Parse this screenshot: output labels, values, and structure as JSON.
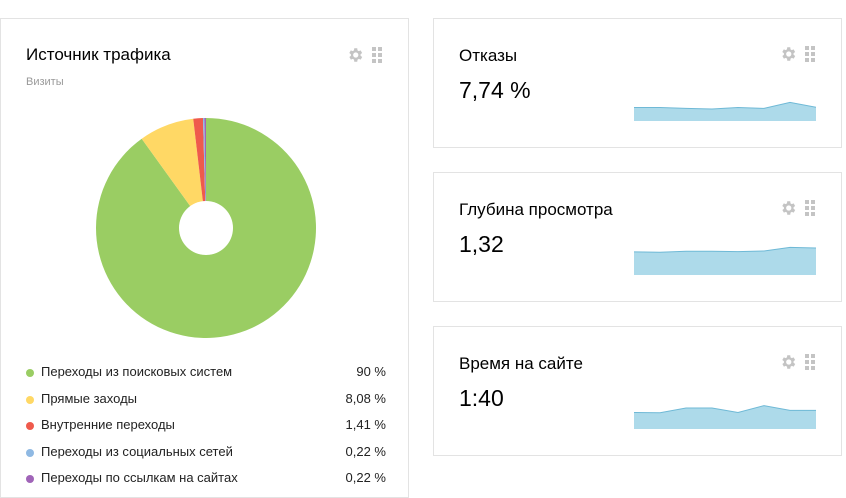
{
  "traffic": {
    "title": "Источник трафика",
    "subtitle": "Визиты",
    "items": [
      {
        "label": "Переходы из поисковых систем",
        "value": "90 %",
        "share": 90,
        "color": "#9ACD63"
      },
      {
        "label": "Прямые заходы",
        "value": "8,08 %",
        "share": 8.08,
        "color": "#FFD865"
      },
      {
        "label": "Внутренние переходы",
        "value": "1,41 %",
        "share": 1.41,
        "color": "#EF5A4C"
      },
      {
        "label": "Переходы из социальных сетей",
        "value": "0,22 %",
        "share": 0.22,
        "color": "#8FB9E3"
      },
      {
        "label": "Переходы по ссылкам на сайтах",
        "value": "0,22 %",
        "share": 0.22,
        "color": "#A064B8"
      }
    ]
  },
  "metrics": [
    {
      "title": "Отказы",
      "value": "7,74 %",
      "trend": [
        0.45,
        0.45,
        0.42,
        0.4,
        0.45,
        0.42,
        0.62,
        0.46
      ]
    },
    {
      "title": "Глубина просмотра",
      "value": "1,32",
      "trend": [
        0.77,
        0.76,
        0.79,
        0.79,
        0.78,
        0.8,
        0.92,
        0.9
      ]
    },
    {
      "title": "Время на сайте",
      "value": "1:40",
      "trend": [
        0.55,
        0.54,
        0.7,
        0.7,
        0.55,
        0.78,
        0.62,
        0.62
      ]
    }
  ],
  "colors": {
    "spark_fill": "#ADDAEA",
    "spark_line": "#6FB9D6",
    "hole": "#ffffff"
  },
  "icons": {
    "settings": "gear-icon",
    "drag": "drag-handle-icon"
  }
}
